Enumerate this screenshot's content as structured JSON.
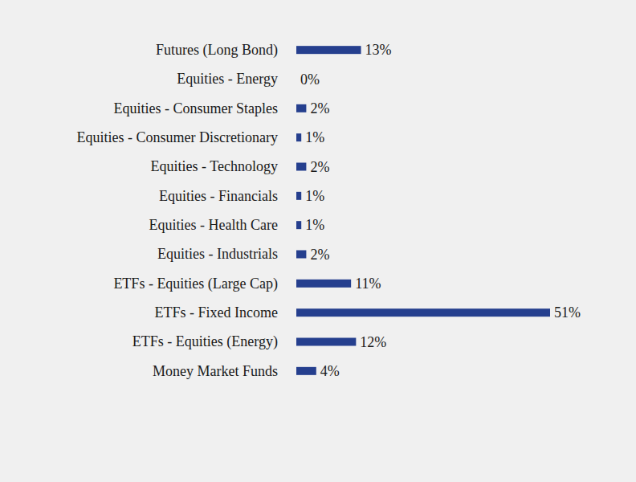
{
  "chart_data": {
    "type": "bar",
    "orientation": "horizontal",
    "categories": [
      "Futures (Long Bond)",
      "Equities - Energy",
      "Equities - Consumer Staples",
      "Equities - Consumer Discretionary",
      "Equities - Technology",
      "Equities - Financials",
      "Equities - Health Care",
      "Equities - Industrials",
      "ETFs - Equities (Large Cap)",
      "ETFs - Fixed Income",
      "ETFs - Equities (Energy)",
      "Money Market Funds"
    ],
    "values": [
      13,
      0,
      2,
      1,
      2,
      1,
      1,
      2,
      11,
      51,
      12,
      4
    ],
    "value_labels": [
      "13%",
      "0%",
      "2%",
      "1%",
      "2%",
      "1%",
      "1%",
      "2%",
      "11%",
      "51%",
      "12%",
      "4%"
    ],
    "color": "#253f8e",
    "data_labels": true,
    "tick_labels": false
  }
}
